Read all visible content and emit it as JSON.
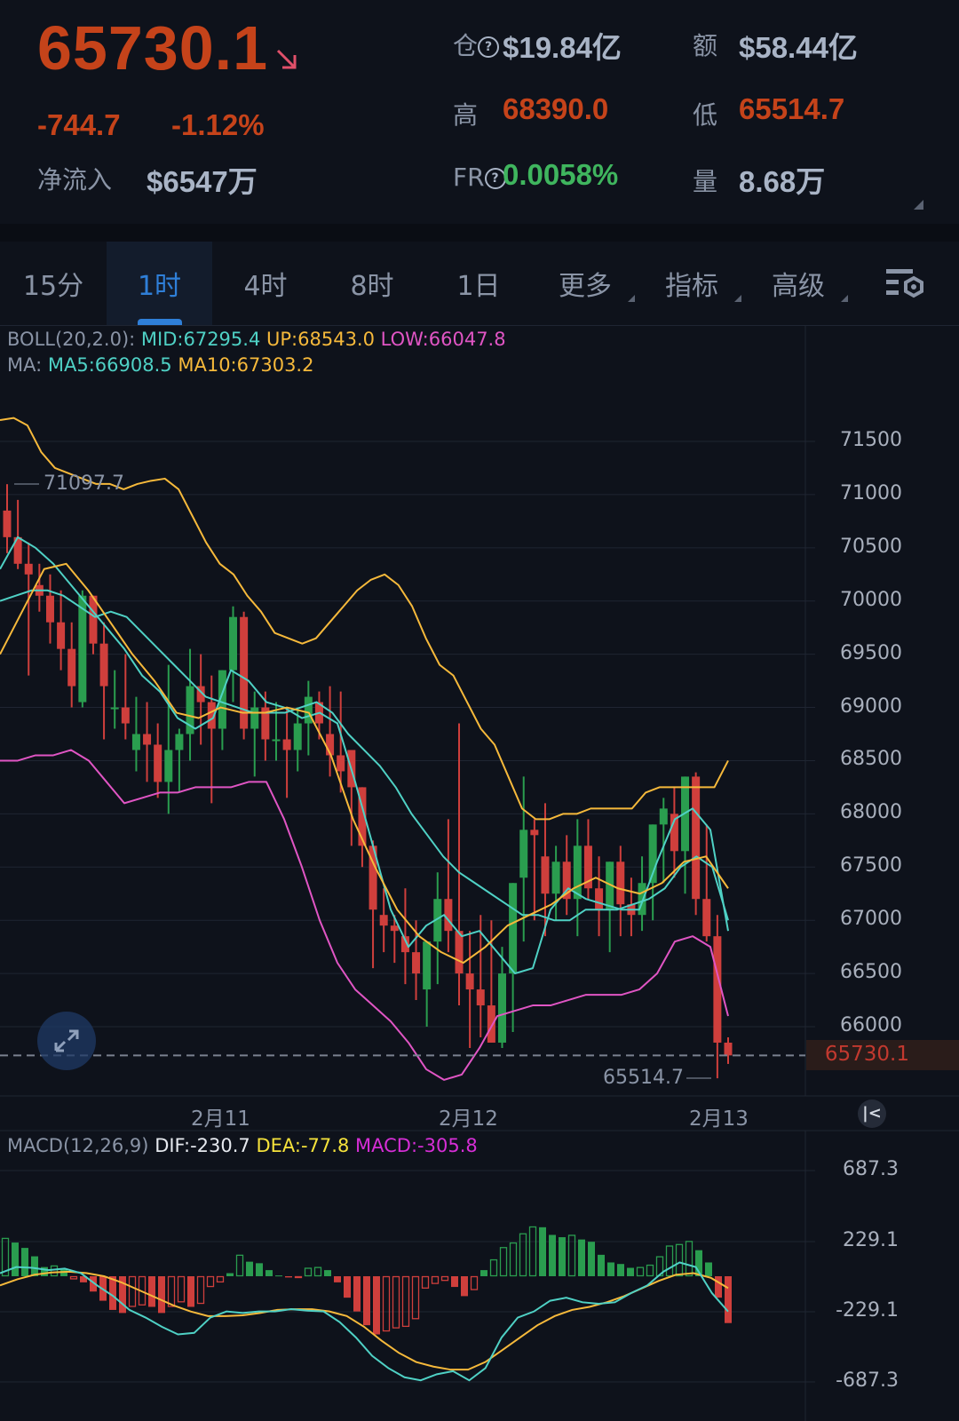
{
  "header": {
    "last_price": "65730.1",
    "trend_icon": "arrow-down-right-icon",
    "change_abs": "-744.7",
    "change_pct": "-1.12%",
    "net_inflow_label": "净流入",
    "net_inflow_value": "$6547万",
    "open_interest_label": "仓",
    "open_interest_value": "$19.84亿",
    "turnover_label": "额",
    "turnover_value": "$58.44亿",
    "high_label": "高",
    "high_value": "68390.0",
    "low_label": "低",
    "low_value": "65514.7",
    "funding_rate_label": "FR",
    "funding_rate_value": "0.0058%",
    "volume_label": "量",
    "volume_value": "8.68万",
    "help_icon": "?"
  },
  "colors": {
    "down": "#c5431a",
    "up": "#3fb55e",
    "candle_red": "#cf3f3c",
    "candle_green": "#2a9d4f",
    "boll_mid": "#4fd1c5",
    "boll_up": "#f6b93b",
    "boll_low": "#e055c4",
    "ma5": "#4fd1c5",
    "ma10": "#f6b93b",
    "accent": "#2f7fd8"
  },
  "tabs": [
    {
      "label": "15分",
      "active": false,
      "dropdown": false
    },
    {
      "label": "1时",
      "active": true,
      "dropdown": false
    },
    {
      "label": "4时",
      "active": false,
      "dropdown": false
    },
    {
      "label": "8时",
      "active": false,
      "dropdown": false
    },
    {
      "label": "1日",
      "active": false,
      "dropdown": false
    },
    {
      "label": "更多",
      "active": false,
      "dropdown": true
    },
    {
      "label": "指标",
      "active": false,
      "dropdown": true
    },
    {
      "label": "高级",
      "active": false,
      "dropdown": true
    }
  ],
  "chart_settings_icon": "list-settings-icon",
  "boll_legend": {
    "name": "BOLL(20,2.0):",
    "mid": "MID:67295.4",
    "up": "UP:68543.0",
    "low": "LOW:66047.8"
  },
  "ma_legend": {
    "name": "MA:",
    "ma5": "MA5:66908.5",
    "ma10": "MA10:67303.2"
  },
  "macd_legend": {
    "name": "MACD(12,26,9)",
    "dif": "DIF:-230.7",
    "dea": "DEA:-77.8",
    "macd": "MACD:-305.8"
  },
  "price_axis": [
    "71500",
    "71000",
    "70500",
    "70000",
    "69500",
    "69000",
    "68500",
    "68000",
    "67500",
    "67000",
    "66500",
    "66000"
  ],
  "last_price_tag": "65730.1",
  "high_marker": "71097.7",
  "low_marker": "65514.7",
  "date_labels": [
    "2月11",
    "2月12",
    "2月13"
  ],
  "macd_axis": [
    "687.3",
    "229.1",
    "-229.1",
    "-687.3"
  ],
  "chart_data": [
    {
      "type": "candlestick",
      "title": "BTC 1H candlestick with BOLL(20,2.0) and MA5/MA10",
      "interval": "1时",
      "xlabel": "",
      "ylabel": "",
      "ylim": [
        65300,
        71800
      ],
      "yticks": [
        71500,
        71000,
        70500,
        70000,
        69500,
        69000,
        68500,
        68000,
        67500,
        67000,
        66500,
        66000
      ],
      "x_tick_labels": [
        "2月11",
        "2月12",
        "2月13"
      ],
      "grid": true,
      "annotations": [
        "71097.7 (high marker)",
        "65514.7 (low marker)",
        "65730.1 (last price)"
      ],
      "ohlc": [
        [
          70850,
          71098,
          70450,
          70600
        ],
        [
          70600,
          70950,
          70300,
          70350
        ],
        [
          70350,
          70550,
          69300,
          70250
        ],
        [
          70150,
          70350,
          69900,
          70050
        ],
        [
          70050,
          70250,
          69600,
          69800
        ],
        [
          69800,
          70100,
          69350,
          69550
        ],
        [
          69550,
          69800,
          69000,
          69200
        ],
        [
          69050,
          70100,
          69000,
          70050
        ],
        [
          70050,
          70050,
          69500,
          69600
        ],
        [
          69600,
          69800,
          68700,
          69200
        ],
        [
          69000,
          69350,
          68800,
          69000
        ],
        [
          69000,
          69500,
          68700,
          68850
        ],
        [
          68600,
          69100,
          68400,
          68750
        ],
        [
          68750,
          69050,
          68300,
          68650
        ],
        [
          68650,
          68850,
          68150,
          68300
        ],
        [
          68300,
          69400,
          68000,
          68600
        ],
        [
          68600,
          68800,
          68200,
          68750
        ],
        [
          68750,
          69550,
          68500,
          69200
        ],
        [
          69200,
          69500,
          68650,
          69050
        ],
        [
          69050,
          69300,
          68100,
          68800
        ],
        [
          68800,
          69350,
          68600,
          69350
        ],
        [
          69350,
          69950,
          69050,
          69850
        ],
        [
          69850,
          69900,
          68700,
          68800
        ],
        [
          68800,
          69150,
          68350,
          69000
        ],
        [
          69000,
          69150,
          68500,
          68700
        ],
        [
          68700,
          69050,
          68500,
          68700
        ],
        [
          68700,
          69000,
          68150,
          68600
        ],
        [
          68600,
          69000,
          68400,
          68850
        ],
        [
          68850,
          69250,
          68550,
          69100
        ],
        [
          69050,
          69150,
          68700,
          68850
        ],
        [
          68750,
          69200,
          68350,
          68550
        ],
        [
          68550,
          69150,
          68200,
          68400
        ],
        [
          68600,
          68450,
          67700,
          68250
        ],
        [
          68250,
          68250,
          67500,
          67700
        ],
        [
          67700,
          67750,
          66550,
          67100
        ],
        [
          67050,
          67300,
          66700,
          66950
        ],
        [
          66950,
          67050,
          66600,
          66900
        ],
        [
          66850,
          67300,
          66400,
          66700
        ],
        [
          66700,
          67000,
          66250,
          66500
        ],
        [
          66350,
          66800,
          66000,
          66800
        ],
        [
          66800,
          67450,
          66400,
          67200
        ],
        [
          67200,
          67950,
          66700,
          66900
        ],
        [
          66900,
          68850,
          66200,
          66500
        ],
        [
          66500,
          66900,
          65800,
          66350
        ],
        [
          66350,
          67050,
          65900,
          66200
        ],
        [
          66200,
          67000,
          65850,
          65850
        ],
        [
          65850,
          66750,
          65800,
          66500
        ],
        [
          66500,
          67350,
          65950,
          67350
        ],
        [
          67400,
          68350,
          66800,
          67850
        ],
        [
          67850,
          67950,
          67000,
          67800
        ],
        [
          67600,
          68100,
          66850,
          67250
        ],
        [
          67250,
          67700,
          67000,
          67550
        ],
        [
          67550,
          67800,
          67050,
          67200
        ],
        [
          67200,
          67950,
          66850,
          67700
        ],
        [
          67700,
          67950,
          67200,
          67300
        ],
        [
          67300,
          67600,
          66850,
          67100
        ],
        [
          67100,
          67550,
          66700,
          67550
        ],
        [
          67550,
          67700,
          66850,
          67150
        ],
        [
          67150,
          67400,
          66850,
          67050
        ],
        [
          67050,
          67600,
          66900,
          67350
        ],
        [
          67350,
          67900,
          67000,
          67900
        ],
        [
          67900,
          68150,
          67350,
          68050
        ],
        [
          68000,
          68250,
          67400,
          67650
        ],
        [
          67650,
          68350,
          67250,
          68350
        ],
        [
          68350,
          68390,
          67050,
          67200
        ],
        [
          67200,
          67900,
          66800,
          66850
        ],
        [
          66850,
          67050,
          65514.7,
          65850
        ],
        [
          65850,
          65900,
          65650,
          65730.1
        ]
      ],
      "series": [
        {
          "name": "BOLL UP",
          "values": [
            71700,
            71720,
            71650,
            71400,
            71250,
            71200,
            71150,
            71100,
            71100,
            71050,
            71100,
            71130,
            71150,
            71050,
            70800,
            70550,
            70350,
            70250,
            70050,
            69900,
            69700,
            69650,
            69600,
            69650,
            69800,
            69950,
            70100,
            70200,
            70250,
            70150,
            69950,
            69650,
            69400,
            69300,
            69050,
            68800,
            68650,
            68350,
            68050,
            67950,
            67950,
            68000,
            68000,
            68050,
            68050,
            68050,
            68050,
            68200,
            68250,
            68250,
            68250,
            68250,
            68250,
            68500
          ]
        },
        {
          "name": "BOLL MID",
          "values": [
            70000,
            70050,
            70100,
            70100,
            70050,
            69950,
            69850,
            69900,
            69850,
            69700,
            69550,
            69400,
            69250,
            69100,
            69050,
            69000,
            68950,
            68950,
            68950,
            69000,
            69050,
            68950,
            68750,
            68600,
            68450,
            68250,
            68000,
            67800,
            67600,
            67450,
            67350,
            67250,
            67150,
            67050,
            67050,
            67000,
            67000,
            67100,
            67100,
            67100,
            67150,
            67200,
            67300,
            67500,
            67600,
            67500,
            67000
          ]
        },
        {
          "name": "BOLL LOW",
          "values": [
            68500,
            68500,
            68550,
            68550,
            68600,
            68500,
            68300,
            68100,
            68150,
            68200,
            68200,
            68250,
            68250,
            68250,
            68300,
            68300,
            67950,
            67500,
            67000,
            66600,
            66350,
            66200,
            66050,
            65850,
            65600,
            65500,
            65550,
            65800,
            66100,
            66150,
            66200,
            66200,
            66250,
            66300,
            66300,
            66300,
            66350,
            66500,
            66800,
            66850,
            66750,
            66100
          ]
        },
        {
          "name": "MA5",
          "values": [
            70300,
            70600,
            70500,
            70350,
            70150,
            69950,
            69750,
            69550,
            69300,
            69150,
            68900,
            68800,
            68900,
            69350,
            69250,
            69050,
            69000,
            68900,
            68950,
            68850,
            68300,
            67700,
            67100,
            66750,
            66950,
            67050,
            66850,
            66900,
            66700,
            66500,
            66550,
            67100,
            67300,
            67200,
            67150,
            67100,
            67100,
            67550,
            67950,
            68050,
            67850,
            66900
          ]
        },
        {
          "name": "MA10",
          "values": [
            69500,
            69900,
            70300,
            70350,
            70100,
            69800,
            69500,
            69250,
            68950,
            68900,
            69000,
            68950,
            68950,
            69000,
            68950,
            68550,
            67950,
            67500,
            67100,
            66850,
            66700,
            66600,
            66750,
            66950,
            67050,
            67150,
            67300,
            67400,
            67300,
            67250,
            67350,
            67550,
            67600,
            67300
          ]
        }
      ]
    },
    {
      "type": "bar",
      "title": "MACD(12,26,9)",
      "ylim": [
        -687.3,
        687.3
      ],
      "yticks": [
        687.3,
        229.1,
        -229.1,
        -687.3
      ],
      "series": [
        {
          "name": "MACD histogram",
          "values": [
            250,
            220,
            185,
            130,
            60,
            70,
            50,
            -20,
            -40,
            -100,
            -160,
            -220,
            -240,
            -200,
            -190,
            -200,
            -240,
            -200,
            -170,
            -200,
            -180,
            -70,
            -40,
            20,
            140,
            95,
            85,
            40,
            5,
            -8,
            -5,
            55,
            60,
            40,
            -40,
            -140,
            -230,
            -320,
            -380,
            -360,
            -340,
            -330,
            -280,
            -80,
            -50,
            -30,
            -70,
            -130,
            -90,
            40,
            110,
            190,
            220,
            280,
            325,
            320,
            270,
            255,
            270,
            240,
            225,
            140,
            90,
            80,
            55,
            60,
            75,
            130,
            200,
            210,
            230,
            170,
            90,
            -140,
            -305.8
          ]
        },
        {
          "name": "DIF",
          "values": [
            20,
            60,
            55,
            40,
            50,
            20,
            -60,
            -130,
            -220,
            -270,
            -330,
            -380,
            -370,
            -270,
            -230,
            -240,
            -230,
            -230,
            -215,
            -225,
            -230,
            -300,
            -400,
            -520,
            -600,
            -660,
            -680,
            -640,
            -620,
            -680,
            -600,
            -400,
            -270,
            -230,
            -160,
            -140,
            -170,
            -180,
            -170,
            -110,
            -60,
            30,
            90,
            60,
            -110,
            -230.7
          ]
        },
        {
          "name": "DEA",
          "values": [
            -60,
            -20,
            10,
            25,
            30,
            20,
            0,
            -40,
            -90,
            -140,
            -190,
            -230,
            -260,
            -260,
            -255,
            -240,
            -220,
            -215,
            -215,
            -230,
            -260,
            -330,
            -420,
            -500,
            -560,
            -590,
            -610,
            -610,
            -560,
            -480,
            -400,
            -320,
            -260,
            -220,
            -200,
            -170,
            -130,
            -80,
            -30,
            10,
            20,
            -10,
            -77.8
          ]
        }
      ]
    }
  ]
}
